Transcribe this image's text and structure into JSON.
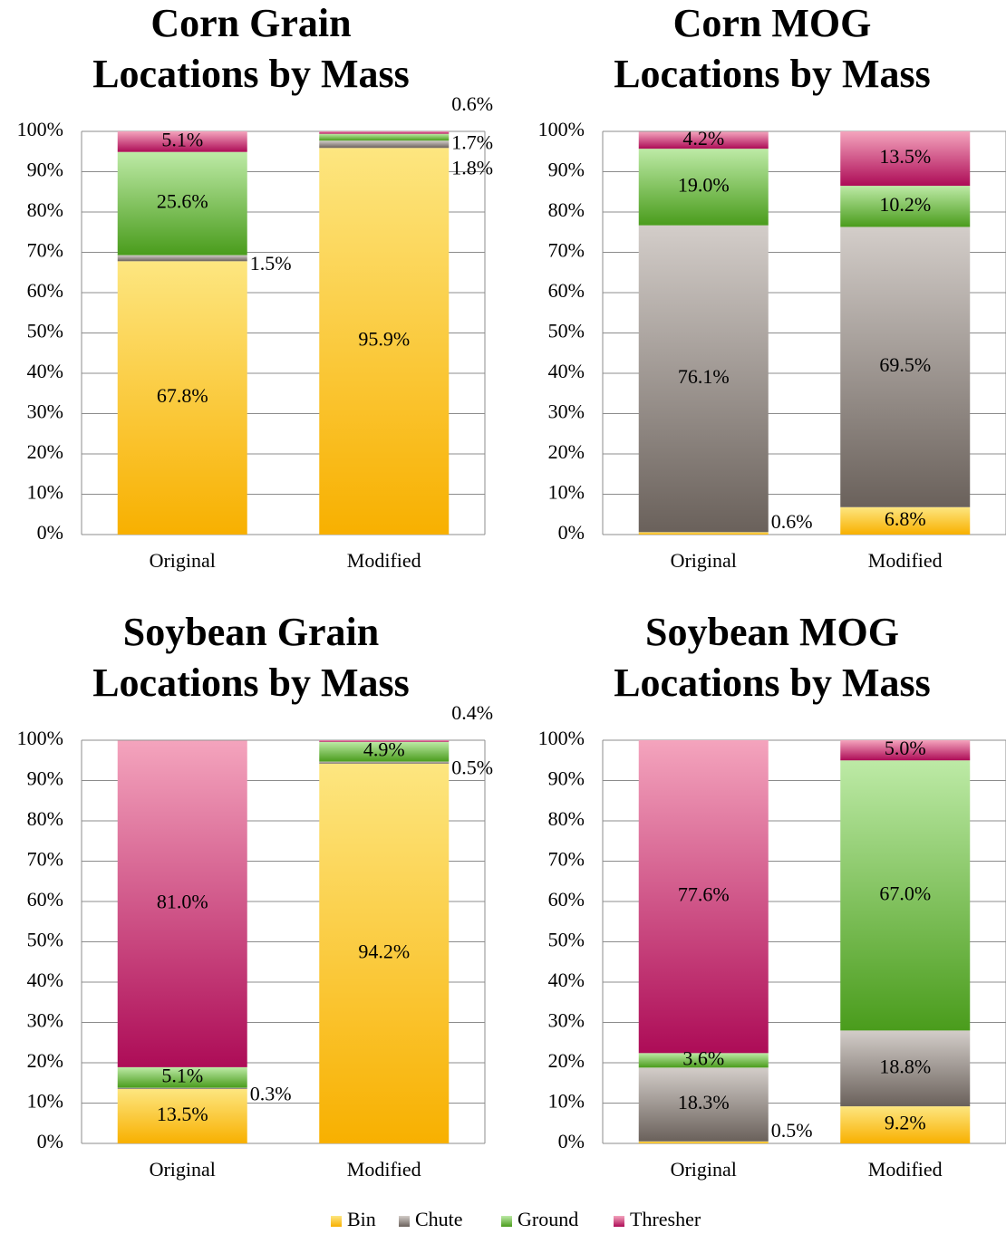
{
  "legend": [
    {
      "name": "Bin",
      "colors": [
        "#fde680",
        "#f8b000"
      ]
    },
    {
      "name": "Chute",
      "colors": [
        "#d3cdc9",
        "#6a615b"
      ]
    },
    {
      "name": "Ground",
      "colors": [
        "#bdeaa6",
        "#4a9c1c"
      ]
    },
    {
      "name": "Thresher",
      "colors": [
        "#f4a4bd",
        "#ad0c57"
      ]
    }
  ],
  "chart_data": [
    {
      "type": "bar",
      "stacked": true,
      "title": [
        "Corn Grain",
        "Locations by Mass"
      ],
      "categories": [
        "Original",
        "Modified"
      ],
      "ylim": [
        0,
        100
      ],
      "yticks": [
        {
          "value": 0,
          "label": "0%"
        },
        {
          "value": 10,
          "label": "10%"
        },
        {
          "value": 20,
          "label": "20%"
        },
        {
          "value": 30,
          "label": "30%"
        },
        {
          "value": 40,
          "label": "40%"
        },
        {
          "value": 50,
          "label": "50%"
        },
        {
          "value": 60,
          "label": "60%"
        },
        {
          "value": 70,
          "label": "70%"
        },
        {
          "value": 80,
          "label": "80%"
        },
        {
          "value": 90,
          "label": "90%"
        },
        {
          "value": 100,
          "label": "100%"
        }
      ],
      "grid": true,
      "series": [
        {
          "values": [
            67.8,
            95.9
          ],
          "value_labels": [
            "67.8%",
            "95.9%"
          ]
        },
        {
          "values": [
            1.5,
            1.8
          ],
          "value_labels": [
            "1.5%",
            "1.8%"
          ]
        },
        {
          "values": [
            25.6,
            1.7
          ],
          "value_labels": [
            "25.6%",
            "1.7%"
          ]
        },
        {
          "values": [
            5.1,
            0.6
          ],
          "value_labels": [
            "5.1%",
            "0.6%"
          ]
        }
      ]
    },
    {
      "type": "bar",
      "stacked": true,
      "title": [
        "Corn MOG",
        "Locations by Mass"
      ],
      "categories": [
        "Original",
        "Modified"
      ],
      "ylim": [
        0,
        100
      ],
      "yticks": [
        {
          "value": 0,
          "label": "0%"
        },
        {
          "value": 10,
          "label": "10%"
        },
        {
          "value": 20,
          "label": "20%"
        },
        {
          "value": 30,
          "label": "30%"
        },
        {
          "value": 40,
          "label": "40%"
        },
        {
          "value": 50,
          "label": "50%"
        },
        {
          "value": 60,
          "label": "60%"
        },
        {
          "value": 70,
          "label": "70%"
        },
        {
          "value": 80,
          "label": "80%"
        },
        {
          "value": 90,
          "label": "90%"
        },
        {
          "value": 100,
          "label": "100%"
        }
      ],
      "grid": true,
      "series": [
        {
          "values": [
            0.6,
            6.8
          ],
          "value_labels": [
            "0.6%",
            "6.8%"
          ]
        },
        {
          "values": [
            76.1,
            69.5
          ],
          "value_labels": [
            "76.1%",
            "69.5%"
          ]
        },
        {
          "values": [
            19.0,
            10.2
          ],
          "value_labels": [
            "19.0%",
            "10.2%"
          ]
        },
        {
          "values": [
            4.2,
            13.5
          ],
          "value_labels": [
            "4.2%",
            "13.5%"
          ]
        }
      ]
    },
    {
      "type": "bar",
      "stacked": true,
      "title": [
        "Soybean Grain",
        "Locations by Mass"
      ],
      "categories": [
        "Original",
        "Modified"
      ],
      "ylim": [
        0,
        100
      ],
      "yticks": [
        {
          "value": 0,
          "label": "0%"
        },
        {
          "value": 10,
          "label": "10%"
        },
        {
          "value": 20,
          "label": "20%"
        },
        {
          "value": 30,
          "label": "30%"
        },
        {
          "value": 40,
          "label": "40%"
        },
        {
          "value": 50,
          "label": "50%"
        },
        {
          "value": 60,
          "label": "60%"
        },
        {
          "value": 70,
          "label": "70%"
        },
        {
          "value": 80,
          "label": "80%"
        },
        {
          "value": 90,
          "label": "90%"
        },
        {
          "value": 100,
          "label": "100%"
        }
      ],
      "grid": true,
      "series": [
        {
          "values": [
            13.5,
            94.2
          ],
          "value_labels": [
            "13.5%",
            "94.2%"
          ]
        },
        {
          "values": [
            0.3,
            0.5
          ],
          "value_labels": [
            "0.3%",
            "0.5%"
          ]
        },
        {
          "values": [
            5.1,
            4.9
          ],
          "value_labels": [
            "5.1%",
            "4.9%"
          ]
        },
        {
          "values": [
            81.0,
            0.4
          ],
          "value_labels": [
            "81.0%",
            "0.4%"
          ]
        }
      ]
    },
    {
      "type": "bar",
      "stacked": true,
      "title": [
        "Soybean MOG",
        "Locations by Mass"
      ],
      "categories": [
        "Original",
        "Modified"
      ],
      "ylim": [
        0,
        100
      ],
      "yticks": [
        {
          "value": 0,
          "label": "0%"
        },
        {
          "value": 10,
          "label": "10%"
        },
        {
          "value": 20,
          "label": "20%"
        },
        {
          "value": 30,
          "label": "30%"
        },
        {
          "value": 40,
          "label": "40%"
        },
        {
          "value": 50,
          "label": "50%"
        },
        {
          "value": 60,
          "label": "60%"
        },
        {
          "value": 70,
          "label": "70%"
        },
        {
          "value": 80,
          "label": "80%"
        },
        {
          "value": 90,
          "label": "90%"
        },
        {
          "value": 100,
          "label": "100%"
        }
      ],
      "grid": true,
      "series": [
        {
          "values": [
            0.5,
            9.2
          ],
          "value_labels": [
            "0.5%",
            "9.2%"
          ]
        },
        {
          "values": [
            18.3,
            18.8
          ],
          "value_labels": [
            "18.3%",
            "18.8%"
          ]
        },
        {
          "values": [
            3.6,
            67.0
          ],
          "value_labels": [
            "3.6%",
            "67.0%"
          ]
        },
        {
          "values": [
            77.6,
            5.0
          ],
          "value_labels": [
            "77.6%",
            "5.0%"
          ]
        }
      ]
    }
  ]
}
